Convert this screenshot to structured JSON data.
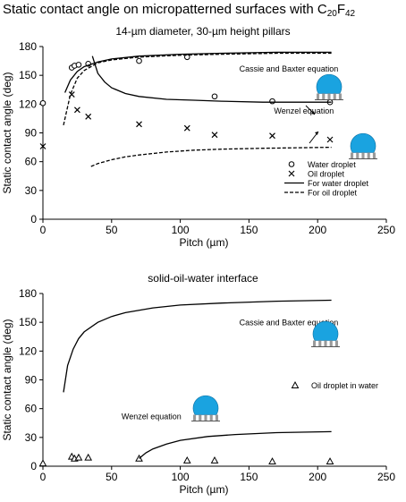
{
  "page_title": "Static contact angle on micropatterned surfaces with C",
  "page_title_sub1": "20",
  "page_title_mid": "F",
  "page_title_sub2": "42",
  "chart_data": [
    {
      "type": "scatter",
      "title": "14-µm diameter, 30-µm height pillars",
      "xlabel": "Pitch (µm)",
      "ylabel": "Static contact angle (deg)",
      "xlim": [
        0,
        250
      ],
      "ylim": [
        0,
        180
      ],
      "xticks": [
        "0",
        "50",
        "100",
        "150",
        "200",
        "250"
      ],
      "yticks": [
        "0",
        "30",
        "60",
        "90",
        "120",
        "150",
        "180"
      ],
      "grid": false,
      "legend_position": "bottom-right",
      "series": [
        {
          "name": "Water droplet",
          "kind": "marker",
          "marker": "circle",
          "x": [
            0,
            21,
            23,
            26,
            33,
            70,
            105,
            125,
            167,
            209
          ],
          "y": [
            121,
            158,
            160,
            161,
            162,
            165,
            169,
            128,
            123,
            122
          ]
        },
        {
          "name": "Oil droplet",
          "kind": "marker",
          "marker": "x",
          "x": [
            0,
            21,
            25,
            33,
            70,
            105,
            125,
            167,
            209
          ],
          "y": [
            76,
            130,
            114,
            107,
            99,
            95,
            88,
            87,
            83
          ]
        },
        {
          "name": "For water droplet",
          "kind": "line",
          "dash": "solid",
          "x": [
            16,
            20,
            25,
            30,
            40,
            50,
            70,
            100,
            130,
            170,
            210
          ],
          "y": [
            132,
            145,
            154,
            159,
            164,
            167,
            170,
            172,
            173,
            174,
            174
          ]
        },
        {
          "name": "",
          "kind": "line",
          "dash": "solid",
          "x": [
            36,
            40,
            45,
            50,
            60,
            70,
            90,
            110,
            130,
            160,
            210
          ],
          "y": [
            170,
            152,
            143,
            137,
            131,
            128,
            125,
            124,
            123,
            122,
            122
          ]
        },
        {
          "name": "For oil droplet",
          "kind": "line",
          "dash": "dashed",
          "x": [
            15,
            20,
            25,
            30,
            40,
            50,
            70,
            100,
            130,
            170,
            210
          ],
          "y": [
            98,
            130,
            147,
            155,
            163,
            166,
            169,
            171,
            172,
            173,
            173
          ]
        },
        {
          "name": "",
          "kind": "line",
          "dash": "dashed",
          "x": [
            35,
            40,
            50,
            60,
            70,
            90,
            110,
            130,
            160,
            210
          ],
          "y": [
            55,
            58,
            62,
            65,
            67,
            70,
            72,
            73,
            74,
            75
          ]
        }
      ],
      "annotations": [
        {
          "text": "Cassie and Baxter equation",
          "x": 179,
          "y": 154
        },
        {
          "text": "Wenzel equation",
          "x": 190,
          "y": 110
        }
      ]
    },
    {
      "type": "scatter",
      "title": "solid-oil-water interface",
      "xlabel": "Pitch (µm)",
      "ylabel": "Static contact angle (deg)",
      "xlim": [
        0,
        250
      ],
      "ylim": [
        0,
        180
      ],
      "xticks": [
        "0",
        "50",
        "100",
        "150",
        "200",
        "250"
      ],
      "yticks": [
        "0",
        "30",
        "60",
        "90",
        "120",
        "150",
        "180"
      ],
      "grid": false,
      "legend_position": "right",
      "series": [
        {
          "name": "Oil droplet in water",
          "kind": "marker",
          "marker": "triangle",
          "x": [
            0,
            21,
            23,
            26,
            33,
            70,
            105,
            125,
            167,
            209
          ],
          "y": [
            3,
            10,
            8,
            9,
            9,
            8,
            6,
            6,
            5,
            5
          ]
        },
        {
          "name": "",
          "kind": "line",
          "dash": "solid",
          "x": [
            15,
            18,
            22,
            26,
            30,
            40,
            50,
            60,
            80,
            100,
            130,
            170,
            210
          ],
          "y": [
            77,
            105,
            122,
            133,
            140,
            150,
            156,
            160,
            165,
            168,
            170,
            172,
            173
          ]
        },
        {
          "name": "",
          "kind": "line",
          "dash": "solid",
          "x": [
            70,
            75,
            80,
            90,
            100,
            120,
            140,
            170,
            210
          ],
          "y": [
            8,
            14,
            18,
            23,
            27,
            31,
            33,
            35,
            36
          ]
        }
      ],
      "annotations": [
        {
          "text": "Cassie and Baxter equation",
          "x": 179,
          "y": 147
        },
        {
          "text": "Wenzel equation",
          "x": 79,
          "y": 49
        }
      ]
    }
  ]
}
